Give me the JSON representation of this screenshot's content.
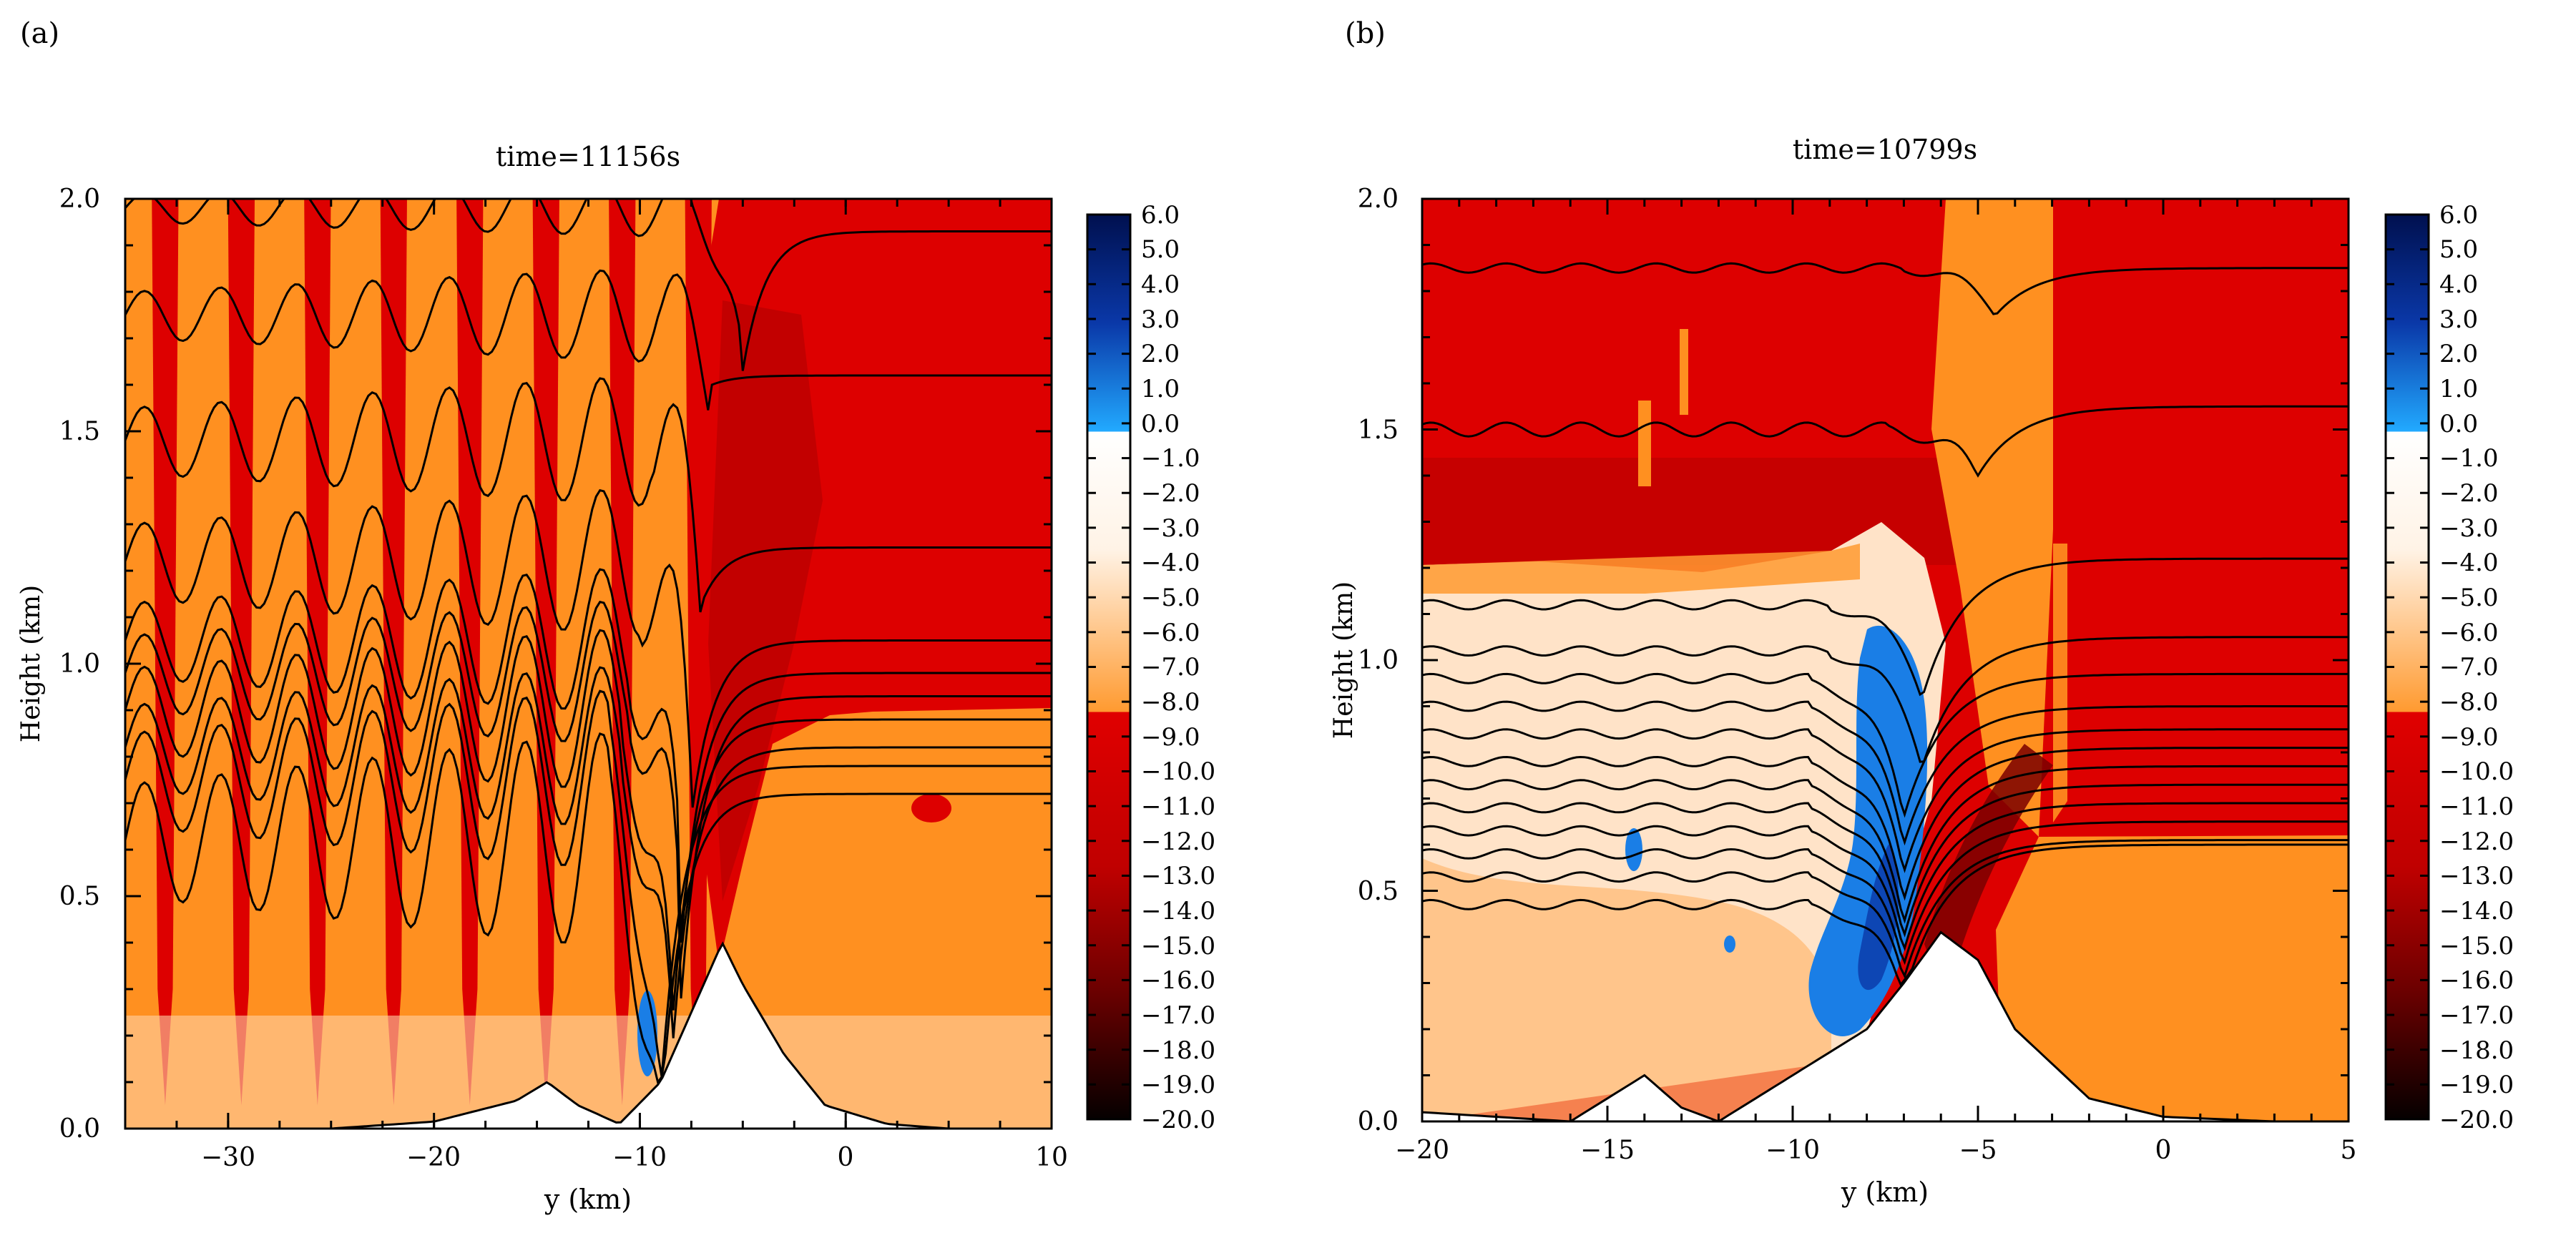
{
  "chart_data": [
    {
      "type": "heatmap",
      "panel_label": "(a)",
      "title": "time=11156s",
      "xlabel": "y (km)",
      "ylabel": "Height (km)",
      "xlim": [
        -35,
        10
      ],
      "ylim": [
        0.0,
        2.0
      ],
      "x_ticks": [
        -30,
        -20,
        -10,
        0,
        10
      ],
      "y_ticks": [
        0.0,
        0.5,
        1.0,
        1.5,
        2.0
      ],
      "x_tick_labels": [
        "−30",
        "−20",
        "−10",
        "0",
        "10"
      ],
      "y_tick_labels": [
        "0.0",
        "0.5",
        "1.0",
        "1.5",
        "2.0"
      ],
      "colorbar_levels": [
        "6.0",
        "5.0",
        "4.0",
        "3.0",
        "2.0",
        "1.0",
        "0.0",
        "−1.0",
        "−2.0",
        "−3.0",
        "−4.0",
        "−5.0",
        "−6.0",
        "−7.0",
        "−8.0",
        "−9.0",
        "−10.0",
        "−11.0",
        "−12.0",
        "−13.0",
        "−14.0",
        "−15.0",
        "−16.0",
        "−17.0",
        "−18.0",
        "−19.0",
        "−20.0"
      ],
      "terrain": {
        "x": [
          -35,
          -25,
          -20,
          -16,
          -14.5,
          -13,
          -11,
          -9,
          -7.5,
          -6,
          -5,
          -3,
          -1,
          2,
          5,
          10
        ],
        "y": [
          0.0,
          0.0,
          0.015,
          0.06,
          0.1,
          0.05,
          0.01,
          0.1,
          0.25,
          0.4,
          0.31,
          0.16,
          0.05,
          0.01,
          0.0,
          0.0
        ]
      },
      "wave_region": {
        "x_start": -35,
        "x_end": -7,
        "wavelength_km": 3.7
      },
      "contours": [
        {
          "base": 1.98,
          "amp": 0.03,
          "dip_x": -5,
          "dip": 0.35,
          "right": 1.93
        },
        {
          "base": 1.75,
          "amp": 0.05,
          "dip_x": -6.5,
          "dip": 0.15,
          "right": 1.62
        },
        {
          "base": 1.48,
          "amp": 0.07,
          "dip_x": -7,
          "dip": 0.35,
          "right": 1.25
        },
        {
          "base": 1.22,
          "amp": 0.08,
          "dip_x": -7.5,
          "dip": 0.55,
          "right": 1.05
        },
        {
          "base": 1.05,
          "amp": 0.08,
          "dip_x": -8,
          "dip": 0.65,
          "right": 0.98
        },
        {
          "base": 0.98,
          "amp": 0.08,
          "dip_x": -8,
          "dip": 0.7,
          "right": 0.93
        },
        {
          "base": 0.9,
          "amp": 0.09,
          "dip_x": -8.5,
          "dip": 0.72,
          "right": 0.88
        },
        {
          "base": 0.82,
          "amp": 0.09,
          "dip_x": -8.5,
          "dip": 0.7,
          "right": 0.82
        },
        {
          "base": 0.75,
          "amp": 0.1,
          "dip_x": -9,
          "dip": 0.68,
          "right": 0.78
        },
        {
          "base": 0.62,
          "amp": 0.12,
          "dip_x": -9,
          "dip": 0.6,
          "right": 0.72
        }
      ]
    },
    {
      "type": "heatmap",
      "panel_label": "(b)",
      "title": "time=10799s",
      "xlabel": "y (km)",
      "ylabel": "Height (km)",
      "xlim": [
        -20,
        5
      ],
      "ylim": [
        0.0,
        2.0
      ],
      "x_ticks": [
        -20,
        -15,
        -10,
        -5,
        0,
        5
      ],
      "y_ticks": [
        0.0,
        0.5,
        1.0,
        1.5,
        2.0
      ],
      "x_tick_labels": [
        "−20",
        "−15",
        "−10",
        "−5",
        "0",
        "5"
      ],
      "y_tick_labels": [
        "0.0",
        "0.5",
        "1.0",
        "1.5",
        "2.0"
      ],
      "colorbar_levels": [
        "6.0",
        "5.0",
        "4.0",
        "3.0",
        "2.0",
        "1.0",
        "0.0",
        "−1.0",
        "−2.0",
        "−3.0",
        "−4.0",
        "−5.0",
        "−6.0",
        "−7.0",
        "−8.0",
        "−9.0",
        "−10.0",
        "−11.0",
        "−12.0",
        "−13.0",
        "−14.0",
        "−15.0",
        "−16.0",
        "−17.0",
        "−18.0",
        "−19.0",
        "−20.0"
      ],
      "terrain": {
        "x": [
          -20,
          -16,
          -14,
          -13,
          -12,
          -10,
          -8,
          -7,
          -6,
          -5,
          -4,
          -2,
          0,
          3,
          5
        ],
        "y": [
          0.02,
          0.0,
          0.1,
          0.03,
          0.0,
          0.1,
          0.2,
          0.3,
          0.41,
          0.35,
          0.2,
          0.05,
          0.01,
          0.0,
          0.0
        ]
      },
      "contours": [
        {
          "base": 1.85,
          "amp": 0.02,
          "dip_x": -4.5,
          "dip": 0.1,
          "right": 1.85
        },
        {
          "base": 1.5,
          "amp": 0.03,
          "dip_x": -5,
          "dip": 0.1,
          "right": 1.55
        },
        {
          "base": 1.12,
          "amp": 0.02,
          "dip_x": -6.5,
          "dip": 0.2,
          "right": 1.22
        },
        {
          "base": 1.02,
          "amp": 0.02,
          "dip_x": -6.5,
          "dip": 0.25,
          "right": 1.05
        },
        {
          "base": 0.96,
          "amp": 0.02,
          "dip_x": -7,
          "dip": 0.3,
          "right": 0.97
        },
        {
          "base": 0.9,
          "amp": 0.02,
          "dip_x": -7,
          "dip": 0.3,
          "right": 0.9
        },
        {
          "base": 0.84,
          "amp": 0.02,
          "dip_x": -7,
          "dip": 0.3,
          "right": 0.85
        },
        {
          "base": 0.78,
          "amp": 0.02,
          "dip_x": -7,
          "dip": 0.3,
          "right": 0.81
        },
        {
          "base": 0.73,
          "amp": 0.02,
          "dip_x": -7,
          "dip": 0.3,
          "right": 0.77
        },
        {
          "base": 0.68,
          "amp": 0.02,
          "dip_x": -7,
          "dip": 0.28,
          "right": 0.73
        },
        {
          "base": 0.63,
          "amp": 0.02,
          "dip_x": -7,
          "dip": 0.26,
          "right": 0.69
        },
        {
          "base": 0.58,
          "amp": 0.02,
          "dip_x": -7,
          "dip": 0.24,
          "right": 0.65
        },
        {
          "base": 0.53,
          "amp": 0.02,
          "dip_x": -7,
          "dip": 0.22,
          "right": 0.61
        },
        {
          "base": 0.47,
          "amp": 0.02,
          "dip_x": -7,
          "dip": 0.2,
          "right": 0.6
        }
      ]
    }
  ],
  "colors": {
    "red": "#dd0000",
    "dark_red": "#b00000",
    "orange": "#ff9020",
    "light_orange": "#ffb870",
    "pale": "#ffe6cc",
    "blue": "#1a7ee6",
    "navy": "#0a1f7a",
    "light_blue": "#22aaff"
  }
}
